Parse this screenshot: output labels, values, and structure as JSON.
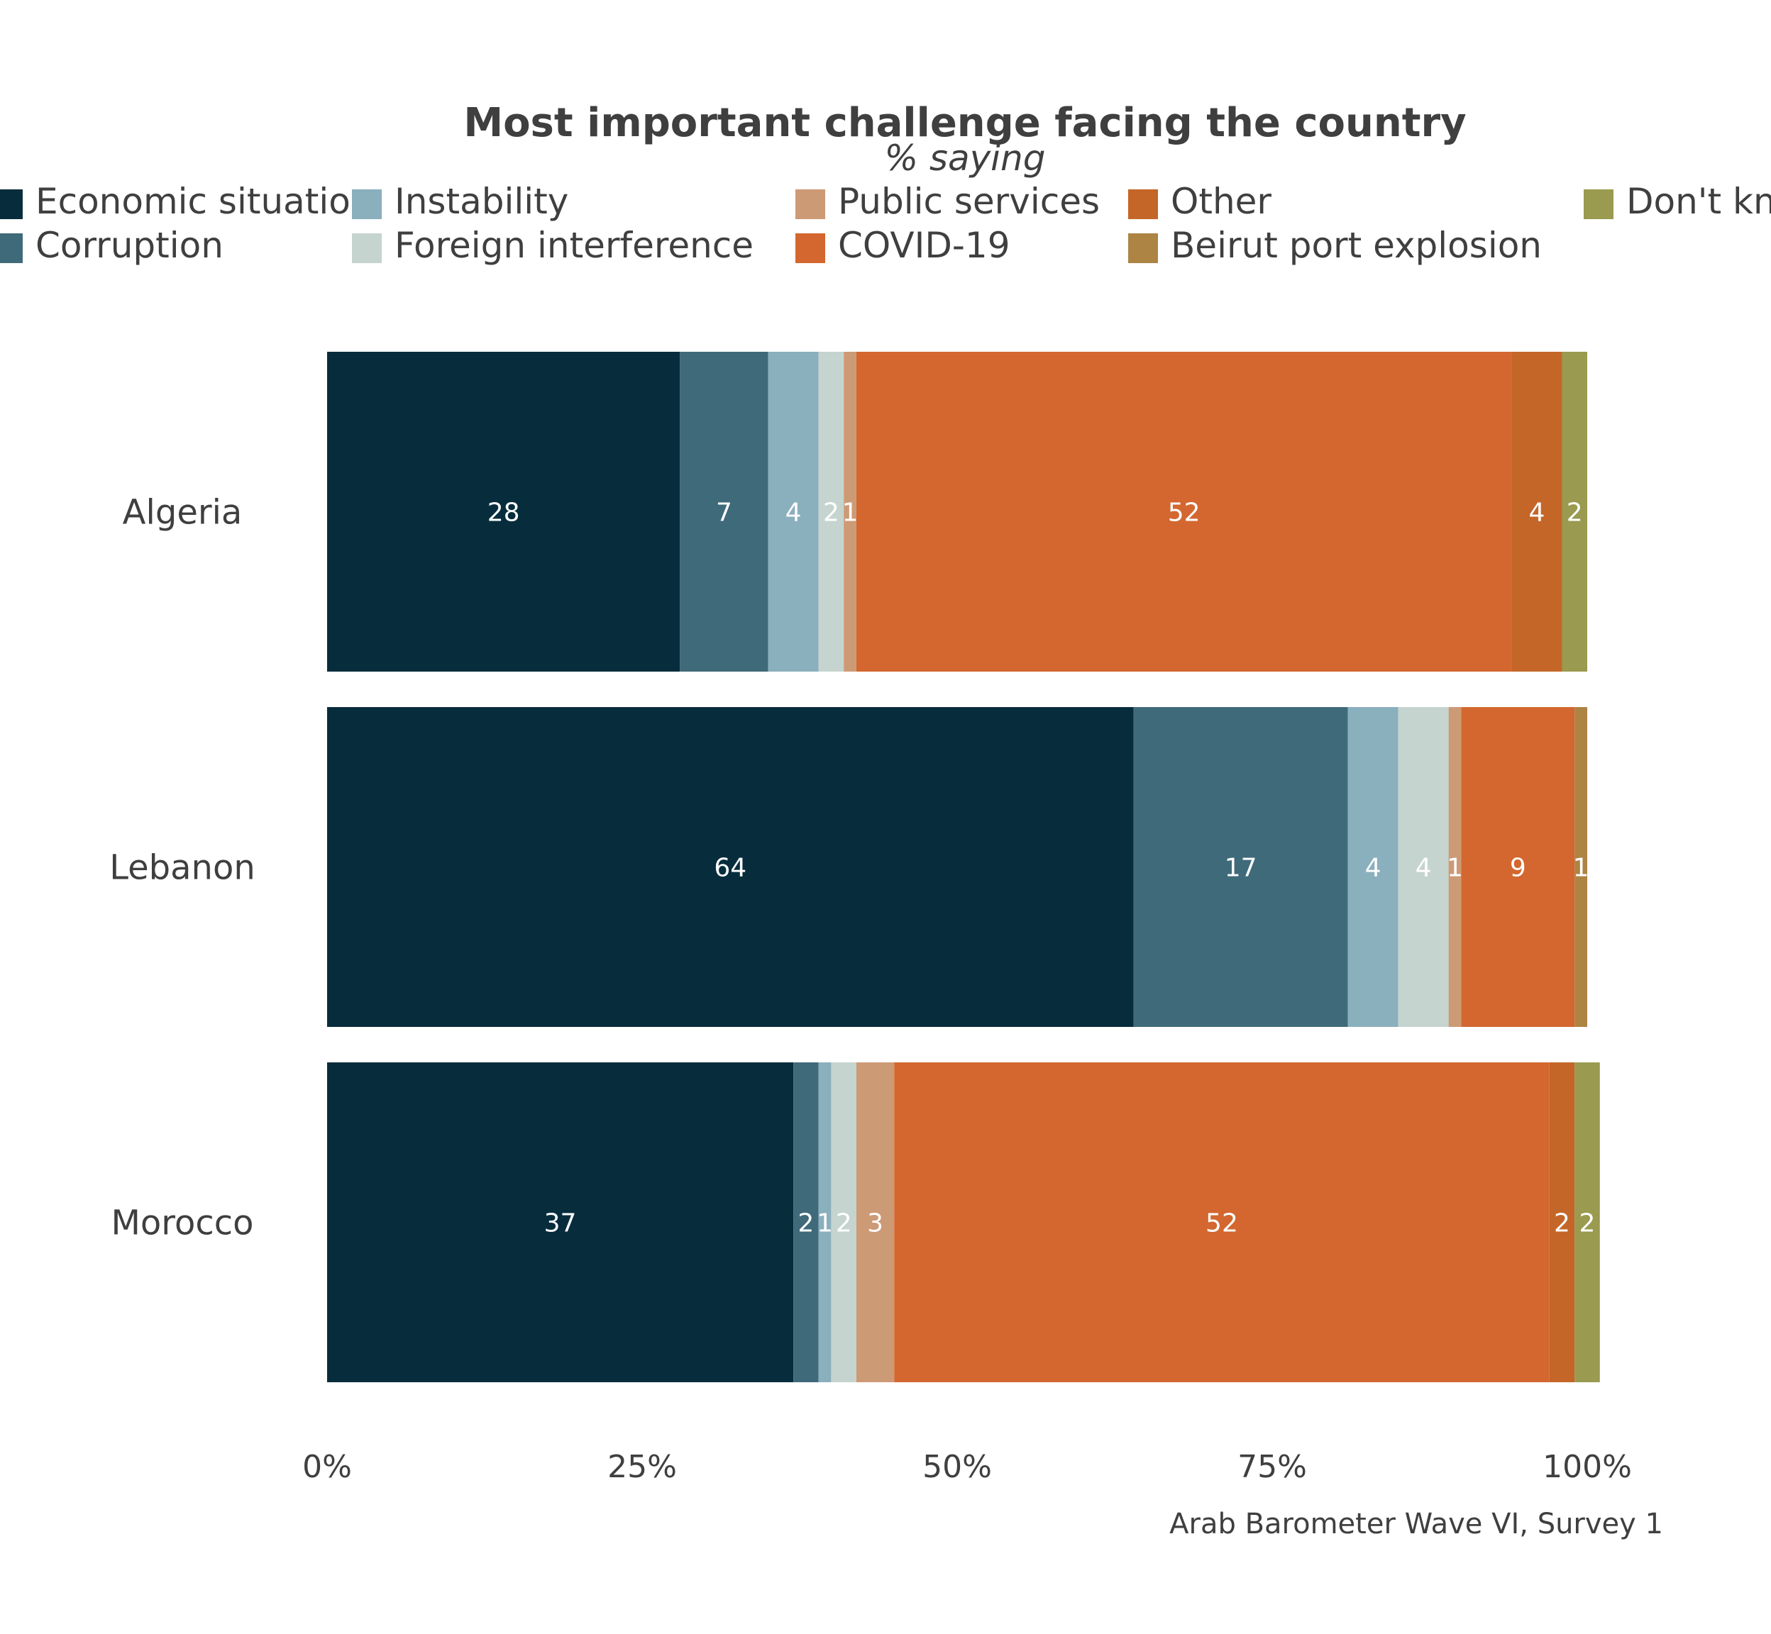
{
  "chart_data": {
    "type": "bar",
    "orientation": "horizontal",
    "stacked": true,
    "title": "Most important challenge facing the country",
    "subtitle": "% saying",
    "caption": "Arab Barometer Wave VI, Survey 1",
    "categories": [
      "Algeria",
      "Lebanon",
      "Morocco"
    ],
    "xlim": [
      0,
      100
    ],
    "x_ticks": [
      0,
      25,
      50,
      75,
      100
    ],
    "x_tick_labels": [
      "0%",
      "25%",
      "50%",
      "75%",
      "100%"
    ],
    "grid": false,
    "legend_position": "top",
    "series": [
      {
        "name": "Economic situation",
        "color": "#072d3d",
        "values": [
          28,
          64,
          37
        ]
      },
      {
        "name": "Corruption",
        "color": "#3f6a7a",
        "values": [
          7,
          17,
          2
        ]
      },
      {
        "name": "Instability",
        "color": "#8aafbd",
        "values": [
          4,
          4,
          1
        ]
      },
      {
        "name": "Foreign interference",
        "color": "#c5d4cf",
        "values": [
          2,
          4,
          2
        ]
      },
      {
        "name": "Public services",
        "color": "#cd9a76",
        "values": [
          1,
          1,
          3
        ]
      },
      {
        "name": "COVID-19",
        "color": "#d3672f",
        "values": [
          52,
          9,
          52
        ]
      },
      {
        "name": "Other",
        "color": "#c46628",
        "values": [
          4,
          0,
          2
        ]
      },
      {
        "name": "Beirut port explosion",
        "color": "#ad8444",
        "values": [
          0,
          1,
          0
        ]
      },
      {
        "name": "Don't know",
        "color": "#9a9a50",
        "values": [
          2,
          0,
          2
        ]
      }
    ]
  }
}
